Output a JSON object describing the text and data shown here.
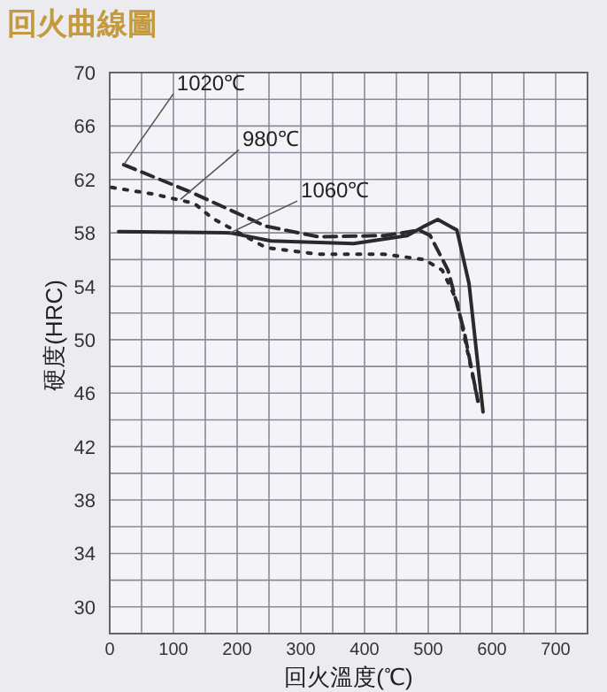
{
  "chart_data": {
    "type": "line",
    "title": "回火曲線圖",
    "xlabel": "回火溫度(℃)",
    "ylabel": "硬度(HRC)",
    "xlim": [
      0,
      750
    ],
    "ylim": [
      28,
      70
    ],
    "xticks": [
      0,
      100,
      200,
      300,
      400,
      500,
      600,
      700
    ],
    "yticks": [
      30,
      34,
      38,
      42,
      46,
      50,
      54,
      58,
      62,
      66,
      70
    ],
    "grid": true,
    "series": [
      {
        "color": "#2a2a2a",
        "line_style": "dashed",
        "x": [
          22,
          125,
          208,
          245,
          328,
          431,
          486,
          503,
          531,
          556,
          578
        ],
        "values": [
          63.1,
          61.1,
          59.3,
          58.5,
          57.7,
          57.8,
          58.2,
          57.8,
          55.2,
          50.7,
          45.4
        ]
      },
      {
        "color": "#2a2a2a",
        "line_style": "dotted",
        "x": [
          3,
          69,
          133,
          161,
          245,
          328,
          431,
          494,
          522,
          545,
          578
        ],
        "values": [
          61.4,
          60.9,
          60.2,
          59.1,
          56.9,
          56.4,
          56.4,
          56.0,
          55.2,
          52.9,
          45.4
        ]
      },
      {
        "color": "#2a2a2a",
        "line_style": "solid",
        "x": [
          14,
          189,
          253,
          383,
          467,
          494,
          515,
          545,
          564,
          586
        ],
        "values": [
          58.1,
          58.0,
          57.4,
          57.2,
          57.8,
          58.5,
          59.0,
          58.2,
          54.2,
          44.6
        ]
      }
    ],
    "annotations": [
      {
        "text": "1020℃",
        "x": 22,
        "y": 63.1
      },
      {
        "text": "980℃",
        "x": 111,
        "y": 60.5
      },
      {
        "text": "1060℃",
        "x": 189,
        "y": 58.0
      }
    ]
  }
}
